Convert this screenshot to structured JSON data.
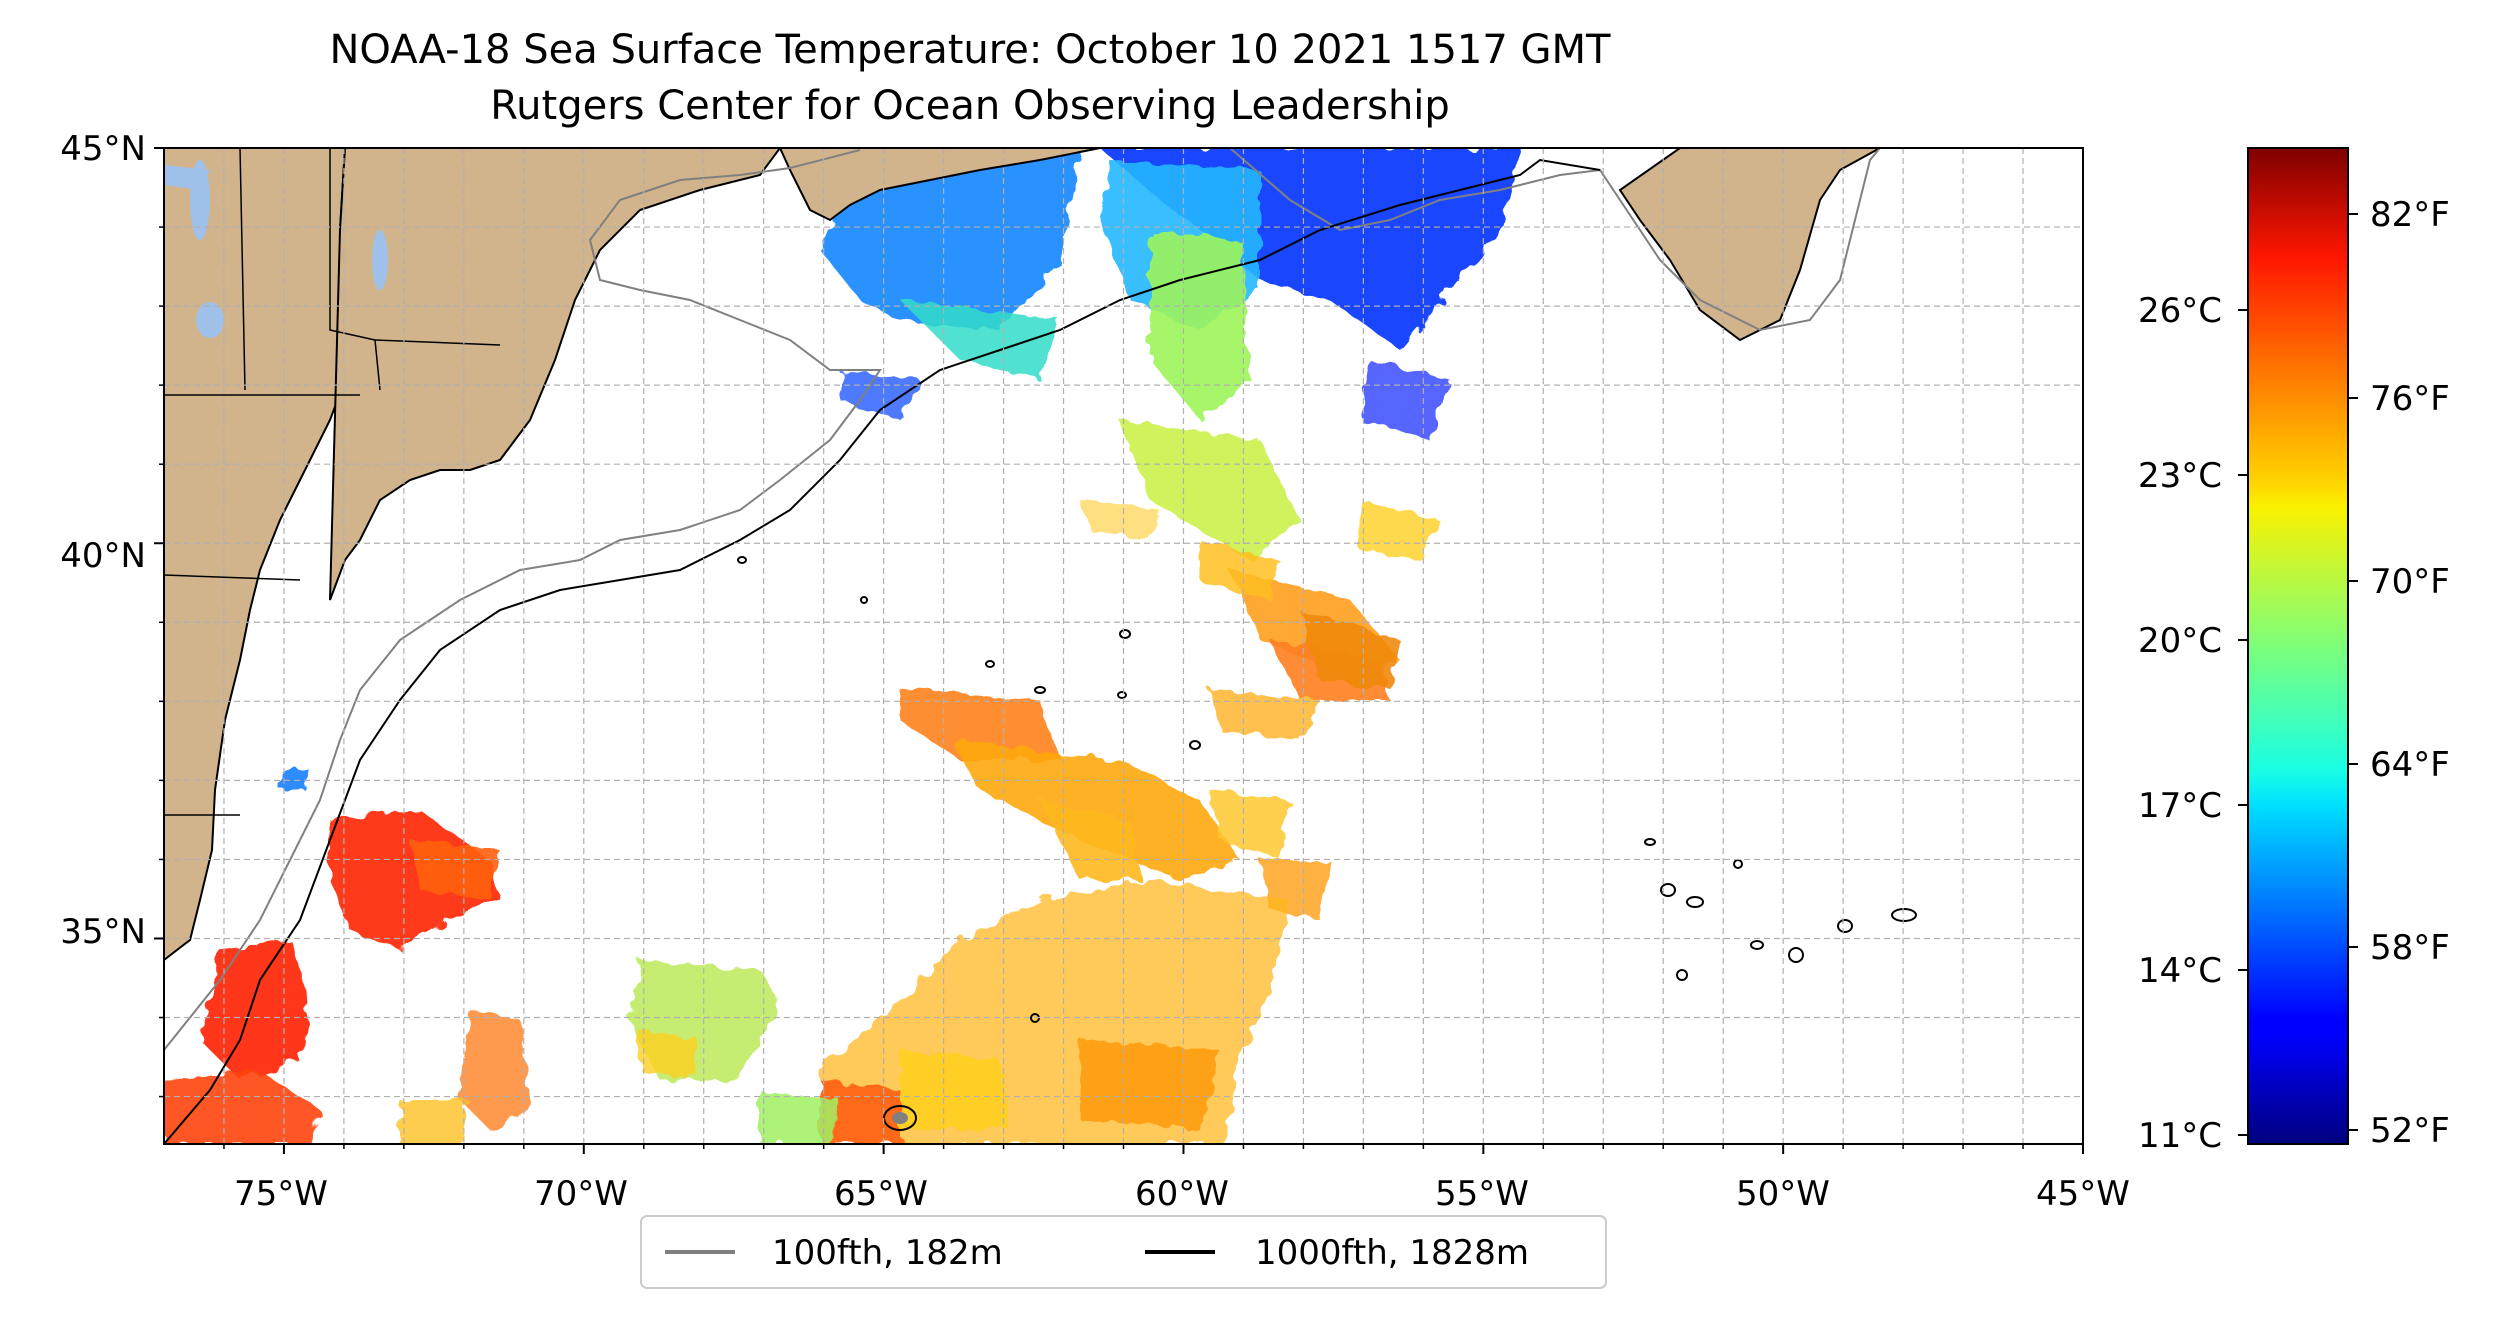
{
  "title_line1": "NOAA-18 Sea Surface Temperature: October 10 2021 1517 GMT",
  "title_line2": "Rutgers Center for Ocean Observing Leadership",
  "map": {
    "lon_range": [
      -77,
      -45
    ],
    "lat_range": [
      32.4,
      45
    ],
    "lon_ticks": [
      "75°W",
      "70°W",
      "65°W",
      "60°W",
      "55°W",
      "50°W",
      "45°W"
    ],
    "lat_ticks": [
      "35°N",
      "40°N",
      "45°N"
    ],
    "grid": true,
    "land_color": "#d2b48c",
    "lake_color": "#9fc0e8"
  },
  "legend": {
    "placement": "bottom-center",
    "items": [
      {
        "label": "100fth, 182m",
        "color": "#808080"
      },
      {
        "label": "1000fth, 1828m",
        "color": "#000000"
      }
    ]
  },
  "colorbar": {
    "colormap": "jet",
    "celsius_ticks": [
      "26°C",
      "23°C",
      "20°C",
      "17°C",
      "14°C",
      "11°C"
    ],
    "fahrenheit_ticks": [
      "82°F",
      "76°F",
      "70°F",
      "64°F",
      "58°F",
      "52°F"
    ]
  }
}
